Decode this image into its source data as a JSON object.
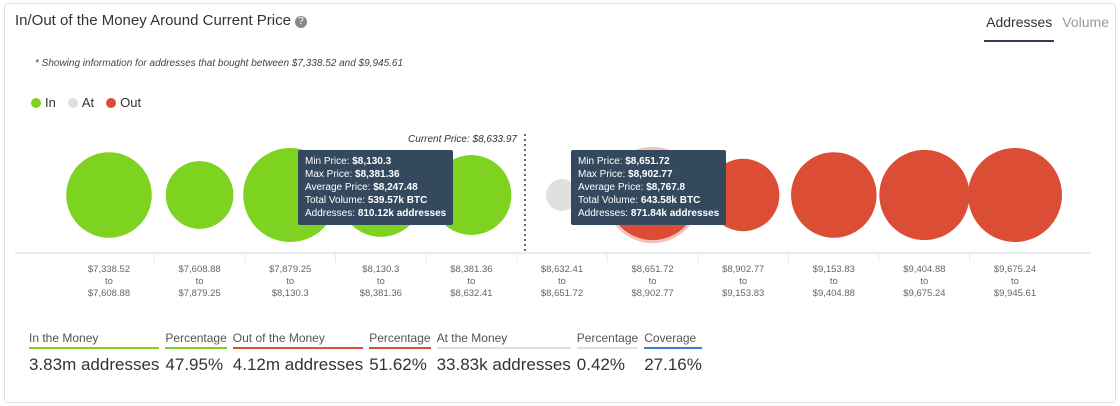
{
  "header": {
    "title": "In/Out of the Money Around Current Price",
    "tabs": [
      "Addresses",
      "Volume"
    ],
    "note": "* Showing information for addresses that bought between $7,338.52 and $9,945.61"
  },
  "colors": {
    "In": "#7ed321",
    "At": "#e0e0e0",
    "Out": "#db4e35"
  },
  "chart_data": {
    "type": "bubble",
    "legend": [
      "In",
      "At",
      "Out"
    ],
    "current_price_label": "Current Price: $8,633.97",
    "categories": [
      {
        "from": "$7,338.52",
        "to": "$7,608.88",
        "status": "In"
      },
      {
        "from": "$7,608.88",
        "to": "$7,879.25",
        "status": "In"
      },
      {
        "from": "$7,879.25",
        "to": "$8,130.3",
        "status": "In"
      },
      {
        "from": "$8,130.3",
        "to": "$8,381.36",
        "status": "In"
      },
      {
        "from": "$8,381.36",
        "to": "$8,632.41",
        "status": "In"
      },
      {
        "from": "$8,632.41",
        "to": "$8,651.72",
        "status": "At"
      },
      {
        "from": "$8,651.72",
        "to": "$8,902.77",
        "status": "Out"
      },
      {
        "from": "$8,902.77",
        "to": "$9,153.83",
        "status": "Out"
      },
      {
        "from": "$9,153.83",
        "to": "$9,404.88",
        "status": "Out"
      },
      {
        "from": "$9,404.88",
        "to": "$9,675.24",
        "status": "Out"
      },
      {
        "from": "$9,675.24",
        "to": "$9,945.61",
        "status": "Out"
      }
    ],
    "relative_size": [
      0.91,
      0.72,
      1.0,
      0.89,
      0.85,
      0.34,
      0.96,
      0.77,
      0.91,
      0.96,
      1.0
    ],
    "tooltips": [
      {
        "lines": [
          [
            "Min Price: ",
            "$8,130.3"
          ],
          [
            "Max Price: ",
            "$8,381.36"
          ],
          [
            "Average Price: ",
            "$8,247.48"
          ],
          [
            "Total Volume: ",
            "539.57k BTC"
          ],
          [
            "Addresses: ",
            "810.12k addresses"
          ]
        ]
      },
      {
        "lines": [
          [
            "Min Price: ",
            "$8,651.72"
          ],
          [
            "Max Price: ",
            "$8,902.77"
          ],
          [
            "Average Price: ",
            "$8,767.8"
          ],
          [
            "Total Volume: ",
            "643.58k BTC"
          ],
          [
            "Addresses: ",
            "871.84k addresses"
          ]
        ]
      }
    ],
    "to_word": "to"
  },
  "stats": [
    {
      "label": "In the Money",
      "value": "3.83m addresses",
      "color": "#7ed321"
    },
    {
      "label": "Percentage",
      "value": "47.95%",
      "color": "#7ed321"
    },
    {
      "label": "Out of the Money",
      "value": "4.12m addresses",
      "color": "#db4e35"
    },
    {
      "label": "Percentage",
      "value": "51.62%",
      "color": "#db4e35"
    },
    {
      "label": "At the Money",
      "value": "33.83k addresses",
      "color": "#e0e0e0"
    },
    {
      "label": "Percentage",
      "value": "0.42%",
      "color": "#e0e0e0"
    },
    {
      "label": "Coverage",
      "value": "27.16%",
      "color": "#3a7bd5"
    }
  ]
}
